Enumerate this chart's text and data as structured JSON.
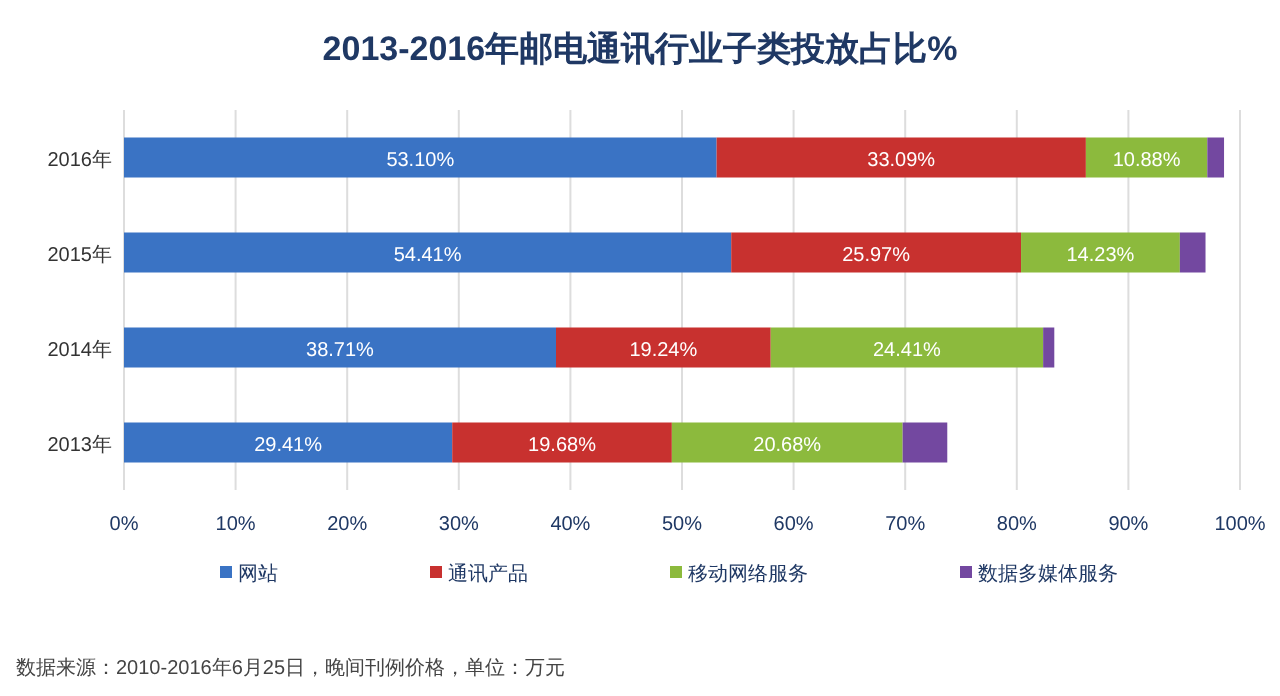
{
  "chart_data": {
    "type": "bar",
    "orientation": "horizontal",
    "stacked": true,
    "title": "2013-2016年邮电通讯行业子类投放占比%",
    "categories": [
      "2016年",
      "2015年",
      "2014年",
      "2013年"
    ],
    "series": [
      {
        "name": "网站",
        "color": "#3a73c4",
        "values": [
          53.1,
          54.41,
          38.71,
          29.41
        ],
        "value_labels": [
          "53.10%",
          "54.41%",
          "38.71%",
          "29.41%"
        ]
      },
      {
        "name": "通讯产品",
        "color": "#c8312f",
        "values": [
          33.09,
          25.97,
          19.24,
          19.68
        ],
        "value_labels": [
          "33.09%",
          "25.97%",
          "19.24%",
          "19.68%"
        ]
      },
      {
        "name": "移动网络服务",
        "color": "#8cba3d",
        "values": [
          10.88,
          14.23,
          24.41,
          20.68
        ],
        "value_labels": [
          "10.88%",
          "14.23%",
          "24.41%",
          "20.68%"
        ]
      },
      {
        "name": "数据多媒体服务",
        "color": "#7348a0",
        "values": [
          1.5,
          2.3,
          1,
          4
        ]
      }
    ],
    "xlim": [
      0,
      100
    ],
    "xticks": [
      {
        "value": 0,
        "label": "0%"
      },
      {
        "value": 10,
        "label": "10%"
      },
      {
        "value": 20,
        "label": "20%"
      },
      {
        "value": 30,
        "label": "30%"
      },
      {
        "value": 40,
        "label": "40%"
      },
      {
        "value": 50,
        "label": "50%"
      },
      {
        "value": 60,
        "label": "60%"
      },
      {
        "value": 70,
        "label": "70%"
      },
      {
        "value": 80,
        "label": "80%"
      },
      {
        "value": 90,
        "label": "90%"
      },
      {
        "value": 100,
        "label": "100%"
      }
    ],
    "grid": "x",
    "legend": "bottom",
    "annotations": [
      "数据来源：2010-2016年6月25日，晚间刊例价格，单位：万元"
    ]
  }
}
